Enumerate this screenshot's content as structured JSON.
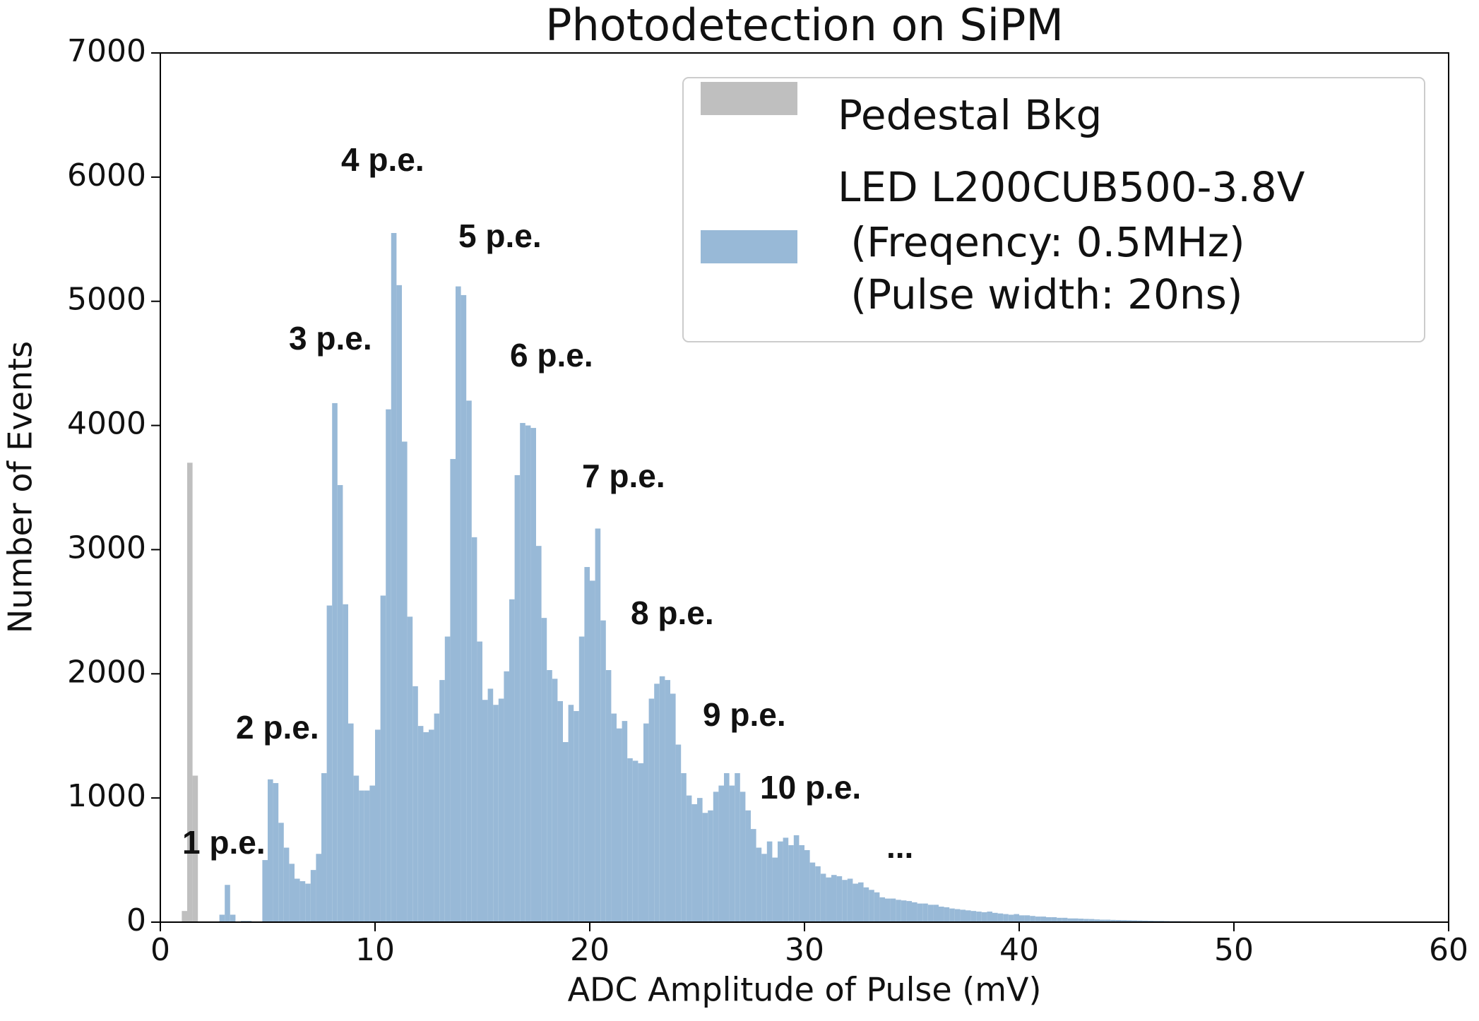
{
  "chart_data": {
    "type": "histogram",
    "title": "Photodetection on SiPM",
    "xlabel": "ADC Amplitude of Pulse (mV)",
    "ylabel": "Number of Events",
    "xlim": [
      0,
      60
    ],
    "ylim": [
      0,
      7000
    ],
    "xticks": [
      0,
      10,
      20,
      30,
      40,
      50,
      60
    ],
    "yticks": [
      0,
      1000,
      2000,
      3000,
      4000,
      5000,
      6000,
      7000
    ],
    "legend": "upper right",
    "annotations": [
      "1 p.e.",
      "2 p.e.",
      "3 p.e.",
      "4 p.e.",
      "5 p.e.",
      "6 p.e.",
      "7 p.e.",
      "8 p.e.",
      "9 p.e.",
      "10 p.e.",
      "..."
    ],
    "series": [
      {
        "name": "Pedestal Bkg",
        "color": "#bfbfbf",
        "bins": [
          1.0,
          1.25,
          1.5,
          1.75
        ],
        "values": [
          90,
          3700,
          1180
        ]
      },
      {
        "name": "LED L200CUB500-3.8V\n (Freqency: 0.5MHz)\n (Pulse width: 20ns)",
        "color": "#98b9d7",
        "bins": [
          2.5,
          2.75,
          3.0,
          3.25,
          3.5,
          3.75,
          4.0,
          4.25,
          4.5,
          4.75,
          5.0,
          5.25,
          5.5,
          5.75,
          6.0,
          6.25,
          6.5,
          6.75,
          7.0,
          7.25,
          7.5,
          7.75,
          8.0,
          8.25,
          8.5,
          8.75,
          9.0,
          9.25,
          9.5,
          9.75,
          10.0,
          10.25,
          10.5,
          10.75,
          11.0,
          11.25,
          11.5,
          11.75,
          12.0,
          12.25,
          12.5,
          12.75,
          13.0,
          13.25,
          13.5,
          13.75,
          14.0,
          14.25,
          14.5,
          14.75,
          15.0,
          15.25,
          15.5,
          15.75,
          16.0,
          16.25,
          16.5,
          16.75,
          17.0,
          17.25,
          17.5,
          17.75,
          18.0,
          18.25,
          18.5,
          18.75,
          19.0,
          19.25,
          19.5,
          19.75,
          20.0,
          20.25,
          20.5,
          20.75,
          21.0,
          21.25,
          21.5,
          21.75,
          22.0,
          22.25,
          22.5,
          22.75,
          23.0,
          23.25,
          23.5,
          23.75,
          24.0,
          24.25,
          24.5,
          24.75,
          25.0,
          25.25,
          25.5,
          25.75,
          26.0,
          26.25,
          26.5,
          26.75,
          27.0,
          27.25,
          27.5,
          27.75,
          28.0,
          28.25,
          28.5,
          28.75,
          29.0,
          29.25,
          29.5,
          29.75,
          30.0,
          30.25,
          30.5,
          30.75,
          31.0,
          31.25,
          31.5,
          31.75,
          32.0,
          32.25,
          32.5,
          32.75,
          33.0,
          33.25,
          33.5,
          33.75,
          34.0,
          34.25,
          34.5,
          34.75,
          35.0,
          35.25,
          35.5,
          35.75,
          36.0,
          36.25,
          36.5,
          36.75,
          37.0,
          37.25,
          37.5,
          37.75,
          38.0,
          38.25,
          38.5,
          38.75,
          39.0,
          39.25,
          39.5,
          39.75,
          40.0,
          40.25,
          40.5,
          40.75,
          41.0,
          41.25,
          41.5,
          41.75,
          42.0,
          42.25,
          42.5,
          42.75,
          43.0,
          43.25,
          43.5,
          43.75,
          44.0,
          44.25,
          44.5,
          44.75,
          45.0,
          45.25,
          45.5,
          45.75,
          46.0,
          46.25,
          46.5,
          46.75,
          47.0,
          47.25,
          47.5,
          47.75,
          48.0,
          48.25,
          48.5,
          48.75,
          49.0,
          49.25,
          49.5,
          49.75,
          50.0,
          50.25,
          50.5,
          50.75,
          51.0,
          51.25,
          51.5,
          51.75,
          52.0
        ],
        "values": [
          0,
          60,
          300,
          60,
          0,
          10,
          10,
          0,
          0,
          500,
          1150,
          1120,
          800,
          600,
          470,
          350,
          330,
          310,
          420,
          550,
          1200,
          2550,
          4180,
          3520,
          2560,
          1600,
          1180,
          1060,
          1060,
          1100,
          1550,
          2630,
          4130,
          5550,
          5130,
          3870,
          2460,
          1900,
          1580,
          1530,
          1550,
          1680,
          1950,
          2300,
          3730,
          5120,
          5050,
          4200,
          3100,
          2260,
          1790,
          1880,
          1750,
          1800,
          2020,
          2600,
          3600,
          4020,
          4000,
          3980,
          3030,
          2450,
          2030,
          1960,
          1780,
          1450,
          1750,
          1700,
          2300,
          2860,
          2750,
          3170,
          2430,
          2030,
          1680,
          1560,
          1620,
          1320,
          1300,
          1280,
          1600,
          1800,
          1920,
          1980,
          1950,
          1840,
          1430,
          1200,
          1020,
          950,
          1000,
          880,
          900,
          1050,
          1100,
          1200,
          1100,
          1200,
          1050,
          900,
          750,
          600,
          550,
          650,
          520,
          650,
          680,
          620,
          700,
          620,
          580,
          480,
          450,
          390,
          360,
          380,
          370,
          340,
          350,
          310,
          320,
          280,
          260,
          240,
          200,
          190,
          190,
          180,
          175,
          170,
          160,
          150,
          150,
          140,
          140,
          125,
          120,
          110,
          105,
          100,
          95,
          90,
          85,
          80,
          85,
          75,
          70,
          65,
          60,
          65,
          55,
          55,
          50,
          45,
          45,
          40,
          40,
          35,
          35,
          30,
          30,
          28,
          26,
          25,
          22,
          20,
          20,
          18,
          17,
          16,
          15,
          14,
          13,
          12,
          11,
          10,
          10,
          9,
          8,
          8,
          7,
          7,
          6,
          6,
          5,
          5,
          5,
          4,
          4,
          4,
          3,
          3,
          3,
          3,
          2,
          2,
          2,
          2
        ]
      }
    ]
  }
}
